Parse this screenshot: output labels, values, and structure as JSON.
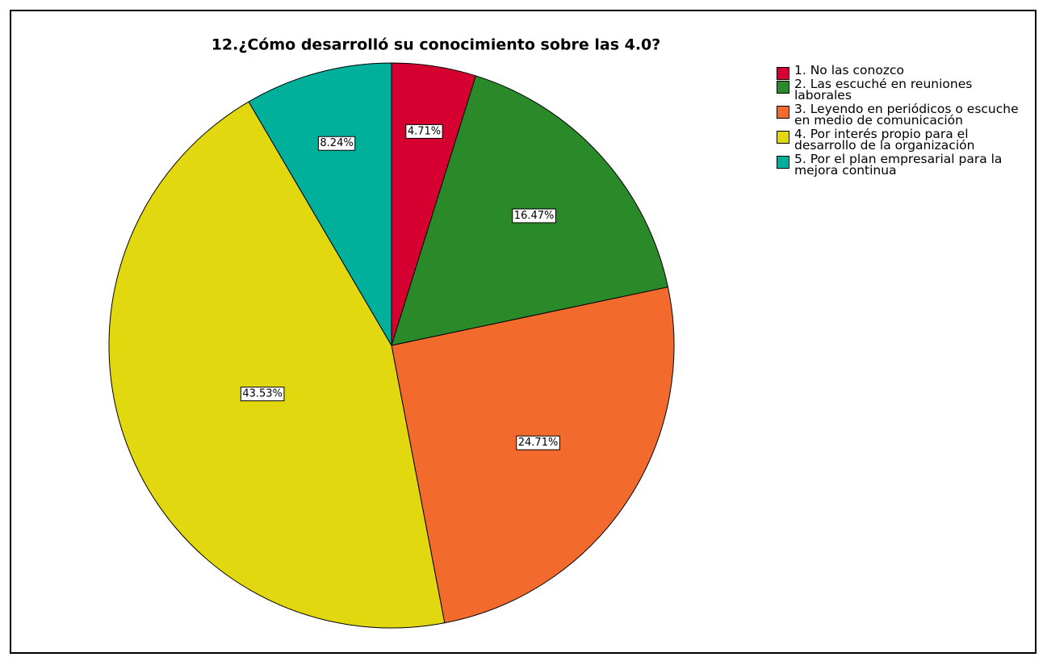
{
  "chart_data": {
    "type": "pie",
    "title": "12.¿Cómo desarrolló su conocimiento sobre las 4.0?",
    "categories": [
      "1. No las conozco",
      "2. Las escuché en reuniones laborales",
      "3. Leyendo en periódicos o escuche en medio de comunicación",
      "4. Por interés propio para el desarrollo de la organización",
      "5. Por el plan empresarial para la mejora continua"
    ],
    "values": [
      4.71,
      16.47,
      24.71,
      43.53,
      8.24
    ],
    "value_labels": [
      "4.71%",
      "16.47%",
      "24.71%",
      "43.53%",
      "8.24%"
    ],
    "colors": [
      "#d5002f",
      "#2a8a2a",
      "#f26b2c",
      "#e2d80f",
      "#00b09a"
    ],
    "legend": "top-right"
  }
}
